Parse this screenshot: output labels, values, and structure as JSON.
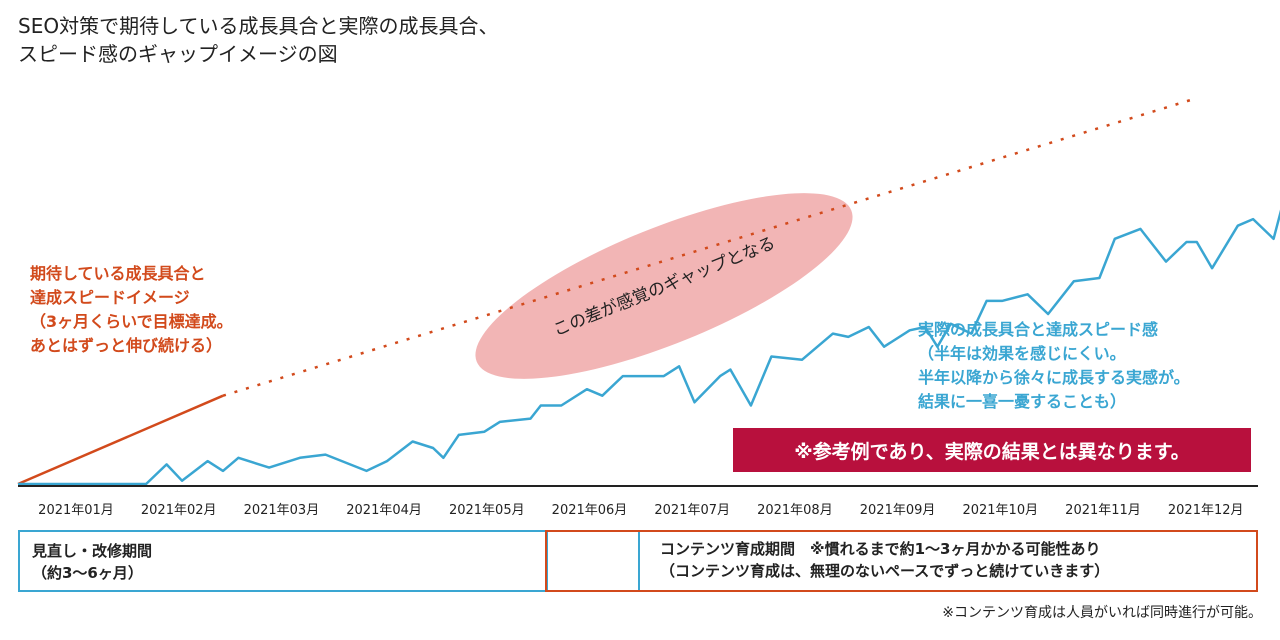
{
  "title": {
    "line1": "SEO対策で期待している成長具合と実際の成長具合、",
    "line2": "スピード感のギャップイメージの図"
  },
  "chart_data": {
    "type": "line",
    "categories": [
      "2021年01月",
      "2021年02月",
      "2021年03月",
      "2021年04月",
      "2021年05月",
      "2021年06月",
      "2021年07月",
      "2021年08月",
      "2021年09月",
      "2021年10月",
      "2021年11月",
      "2021年12月"
    ],
    "series": [
      {
        "name": "期待している成長具合と達成スピードイメージ",
        "style": "solid-then-dotted",
        "color": "#d24a1c",
        "points": [
          [
            0.0,
            0
          ],
          [
            2.0,
            27
          ],
          [
            11.5,
            118
          ]
        ],
        "solid_until_x": 2.0
      },
      {
        "name": "実際の成長具合と達成スピード感",
        "color": "#3aa6d2",
        "points": [
          [
            0.0,
            0
          ],
          [
            1.0,
            0
          ],
          [
            1.2,
            0
          ],
          [
            1.25,
            0
          ],
          [
            1.45,
            6
          ],
          [
            1.6,
            1
          ],
          [
            1.85,
            7
          ],
          [
            2.0,
            4
          ],
          [
            2.15,
            8
          ],
          [
            2.45,
            5
          ],
          [
            2.75,
            8
          ],
          [
            3.0,
            9
          ],
          [
            3.4,
            4
          ],
          [
            3.6,
            7
          ],
          [
            3.85,
            13
          ],
          [
            4.05,
            11
          ],
          [
            4.15,
            8
          ],
          [
            4.3,
            15
          ],
          [
            4.55,
            16
          ],
          [
            4.7,
            19
          ],
          [
            5.0,
            20
          ],
          [
            5.1,
            24
          ],
          [
            5.3,
            24
          ],
          [
            5.55,
            29
          ],
          [
            5.7,
            27
          ],
          [
            5.9,
            33
          ],
          [
            6.1,
            33
          ],
          [
            6.3,
            33
          ],
          [
            6.45,
            36
          ],
          [
            6.6,
            25
          ],
          [
            6.85,
            33
          ],
          [
            6.95,
            35
          ],
          [
            7.15,
            24
          ],
          [
            7.35,
            39
          ],
          [
            7.65,
            38
          ],
          [
            7.95,
            46
          ],
          [
            8.1,
            45
          ],
          [
            8.3,
            48
          ],
          [
            8.45,
            42
          ],
          [
            8.7,
            47
          ],
          [
            8.85,
            48
          ],
          [
            8.97,
            42
          ],
          [
            9.1,
            49
          ],
          [
            9.3,
            46
          ],
          [
            9.45,
            56
          ],
          [
            9.6,
            56
          ],
          [
            9.85,
            58
          ],
          [
            10.05,
            52
          ],
          [
            10.3,
            62
          ],
          [
            10.55,
            63
          ],
          [
            10.7,
            75
          ],
          [
            10.95,
            78
          ],
          [
            11.2,
            68
          ],
          [
            11.4,
            74
          ],
          [
            11.5,
            74
          ],
          [
            11.65,
            66
          ],
          [
            11.9,
            79
          ],
          [
            12.05,
            81
          ],
          [
            12.25,
            75
          ],
          [
            12.35,
            87
          ],
          [
            12.6,
            84
          ],
          [
            12.8,
            97
          ],
          [
            13.05,
            94
          ],
          [
            13.35,
            92
          ],
          [
            13.45,
            92
          ],
          [
            13.65,
            103
          ],
          [
            13.85,
            99
          ],
          [
            14.05,
            108
          ],
          [
            14.25,
            102
          ],
          [
            14.4,
            104
          ],
          [
            14.6,
            95
          ],
          [
            14.75,
            94
          ],
          [
            14.9,
            102
          ],
          [
            15.05,
            104
          ],
          [
            15.2,
            110
          ]
        ]
      }
    ],
    "x_scale": "month-index",
    "xlim": [
      0,
      15.2
    ],
    "ylim": [
      0,
      120
    ],
    "grid": false,
    "legend": "inline-labels"
  },
  "annotations": {
    "gap_label": "この差が感覚のギャップとなる",
    "gap_ellipse_color": "#f2b5b5",
    "expect_label_lines": [
      "期待している成長具合と",
      "達成スピードイメージ",
      "（3ヶ月くらいで目標達成。",
      "あとはずっと伸び続ける）"
    ],
    "expect_color": "#d24a1c",
    "actual_label_lines": [
      "実際の成長具合と達成スピード感",
      "（半年は効果を感じにくい。",
      "半年以降から徐々に成長する実感が。",
      "結果に一喜一憂することも）"
    ],
    "actual_color": "#3aa6d2",
    "disclaimer": "※参考例であり、実際の結果とは異なります。",
    "disclaimer_color": "#b8103d"
  },
  "periods": {
    "review": {
      "line1": "見直し・改修期間",
      "line2": "（約3〜6ヶ月）",
      "color": "#3aa6d2"
    },
    "content": {
      "line1": "コンテンツ育成期間　※慣れるまで約1〜3ヶ月かかる可能性あり",
      "line2": "（コンテンツ育成は、無理のないペースでずっと続けていきます）",
      "color": "#d24a1c"
    }
  },
  "footnote": "※コンテンツ育成は人員がいれば同時進行が可能。"
}
